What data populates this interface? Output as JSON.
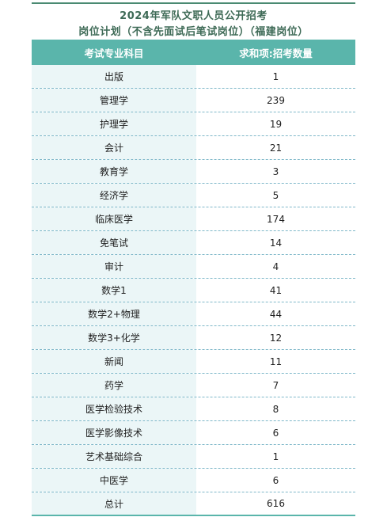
{
  "title": {
    "line1": "2024年军队文职人员公开招考",
    "line2": "岗位计划（不含先面试后笔试岗位）（福建岗位）"
  },
  "table": {
    "header": {
      "subject": "考试专业科目",
      "count": "求和项:招考数量"
    },
    "rows": [
      {
        "subject": "出版",
        "count": "1"
      },
      {
        "subject": "管理学",
        "count": "239"
      },
      {
        "subject": "护理学",
        "count": "19"
      },
      {
        "subject": "会计",
        "count": "21"
      },
      {
        "subject": "教育学",
        "count": "3"
      },
      {
        "subject": "经济学",
        "count": "5"
      },
      {
        "subject": "临床医学",
        "count": "174"
      },
      {
        "subject": "免笔试",
        "count": "14"
      },
      {
        "subject": "审计",
        "count": "4"
      },
      {
        "subject": "数学1",
        "count": "41"
      },
      {
        "subject": "数学2+物理",
        "count": "44"
      },
      {
        "subject": "数学3+化学",
        "count": "12"
      },
      {
        "subject": "新闻",
        "count": "11"
      },
      {
        "subject": "药学",
        "count": "7"
      },
      {
        "subject": "医学检验技术",
        "count": "8"
      },
      {
        "subject": "医学影像技术",
        "count": "6"
      },
      {
        "subject": "艺术基础综合",
        "count": "1"
      },
      {
        "subject": "中医学",
        "count": "6"
      },
      {
        "subject": "总计",
        "count": "616"
      }
    ]
  },
  "colors": {
    "header_bg": "#5ab5ab",
    "first_col_bg": "#ebf6f7",
    "title_text": "#3e6a56",
    "row_divider": "#7fb8c9"
  }
}
